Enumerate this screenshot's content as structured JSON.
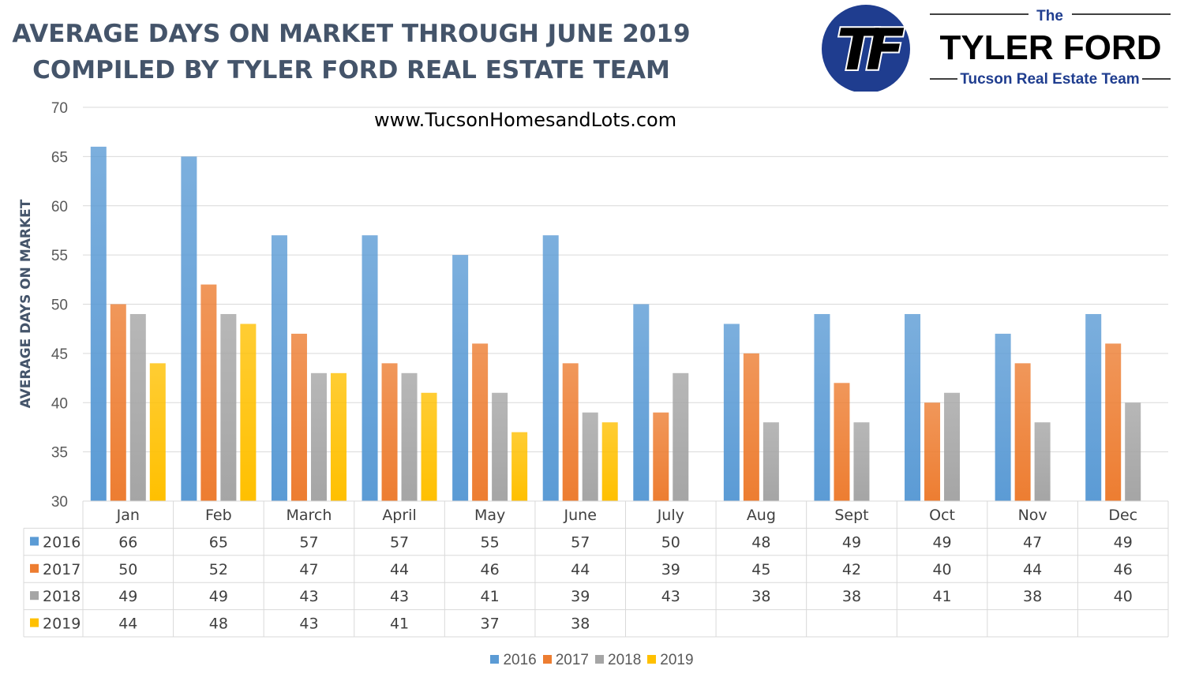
{
  "header": {
    "title_line1": "AVERAGE DAYS ON MARKET THROUGH JUNE 2019",
    "title_line2": "COMPILED BY TYLER FORD REAL ESTATE TEAM",
    "website": "www.TucsonHomesandLots.com"
  },
  "logo": {
    "the": "The",
    "name": "TYLER FORD",
    "tagline": "Tucson Real Estate Team",
    "monogram": "TF",
    "colors": {
      "navy": "#1f3d8f",
      "black": "#000000"
    }
  },
  "chart_data": {
    "type": "bar",
    "title": "",
    "xlabel": "",
    "ylabel": "AVERAGE DAYS ON MARKET",
    "ylim": [
      30,
      70
    ],
    "yticks": [
      30,
      35,
      40,
      45,
      50,
      55,
      60,
      65,
      70
    ],
    "grid": true,
    "legend_position": "bottom",
    "data_table": true,
    "categories": [
      "Jan",
      "Feb",
      "March",
      "April",
      "May",
      "June",
      "July",
      "Aug",
      "Sept",
      "Oct",
      "Nov",
      "Dec"
    ],
    "series": [
      {
        "name": "2016",
        "color": "#5b9bd5",
        "values": [
          66,
          65,
          57,
          57,
          55,
          57,
          50,
          48,
          49,
          49,
          47,
          49
        ]
      },
      {
        "name": "2017",
        "color": "#ed7d31",
        "values": [
          50,
          52,
          47,
          44,
          46,
          44,
          39,
          45,
          42,
          40,
          44,
          46
        ]
      },
      {
        "name": "2018",
        "color": "#a5a5a5",
        "values": [
          49,
          49,
          43,
          43,
          41,
          39,
          43,
          38,
          38,
          41,
          38,
          40
        ]
      },
      {
        "name": "2019",
        "color": "#ffc000",
        "values": [
          44,
          48,
          43,
          41,
          37,
          38,
          null,
          null,
          null,
          null,
          null,
          null
        ]
      }
    ]
  }
}
